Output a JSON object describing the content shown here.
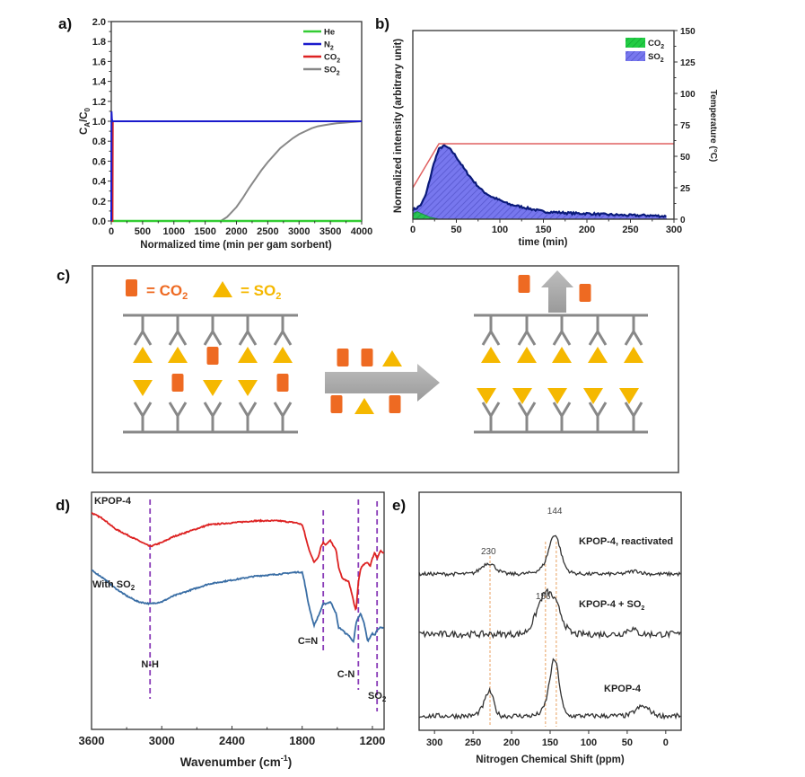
{
  "figure": {
    "panels": [
      "a)",
      "b)",
      "c)",
      "d)",
      "e)"
    ]
  },
  "chart_data": [
    {
      "id": "a",
      "type": "line",
      "title": "",
      "xlabel": "Normalized time (min per gam sorbent)",
      "ylabel": "C_A/C_0",
      "xlim": [
        0,
        4000
      ],
      "ylim": [
        0,
        2.0
      ],
      "xticks": [
        "0",
        "500",
        "1000",
        "1500",
        "2000",
        "2500",
        "3000",
        "3500",
        "4000"
      ],
      "yticks": [
        "0.0",
        "0.2",
        "0.4",
        "0.6",
        "0.8",
        "1.0",
        "1.2",
        "1.4",
        "1.6",
        "1.8",
        "2.0"
      ],
      "legend_position": "top-right",
      "series": [
        {
          "name": "He",
          "label_main": "He",
          "label_sub": "",
          "color": "#33cc33",
          "x": [
            0,
            10,
            4000
          ],
          "y": [
            0,
            0,
            0
          ]
        },
        {
          "name": "N2",
          "label_main": "N",
          "label_sub": "2",
          "color": "#1a1acc",
          "x": [
            0,
            5,
            10,
            20,
            4000
          ],
          "y": [
            0,
            1.1,
            1.02,
            1.0,
            1.0
          ]
        },
        {
          "name": "CO2",
          "label_main": "CO",
          "label_sub": "2",
          "color": "#dd2222",
          "x": [
            0,
            20,
            25,
            30,
            4000
          ],
          "y": [
            0,
            0,
            1.0,
            1.0,
            1.0
          ]
        },
        {
          "name": "SO2",
          "label_main": "SO",
          "label_sub": "2",
          "color": "#888888",
          "x": [
            0,
            1750,
            1850,
            2000,
            2100,
            2200,
            2300,
            2400,
            2500,
            2600,
            2700,
            2800,
            2900,
            3000,
            3100,
            3200,
            3300,
            3400,
            3500,
            3600,
            3700,
            3800,
            3900,
            4000
          ],
          "y": [
            0,
            0,
            0.04,
            0.14,
            0.23,
            0.33,
            0.42,
            0.51,
            0.59,
            0.66,
            0.73,
            0.78,
            0.83,
            0.87,
            0.9,
            0.93,
            0.95,
            0.96,
            0.97,
            0.98,
            0.985,
            0.99,
            0.995,
            1.0
          ]
        }
      ]
    },
    {
      "id": "b",
      "type": "area",
      "title": "",
      "xlabel": "time (min)",
      "ylabel": "Normalized intensity (arbitrary unit)",
      "y2label": "Temperature (°C)",
      "xlim": [
        0,
        300
      ],
      "ylim": [
        0,
        1
      ],
      "y2lim": [
        0,
        150
      ],
      "xticks": [
        "0",
        "50",
        "100",
        "150",
        "200",
        "250",
        "300"
      ],
      "y2ticks": [
        "0",
        "25",
        "50",
        "75",
        "100",
        "125",
        "150"
      ],
      "legend_position": "top-right",
      "series": [
        {
          "name": "CO2",
          "label_main": "CO",
          "label_sub": "2",
          "fill": "#22cc44",
          "color": "#118833",
          "x": [
            0,
            5,
            10,
            15,
            20,
            25,
            30
          ],
          "y": [
            0.03,
            0.04,
            0.03,
            0.02,
            0.01,
            0.005,
            0.0
          ]
        },
        {
          "name": "SO2",
          "label_main": "SO",
          "label_sub": "2",
          "fill": "#7777ee",
          "color": "#0a1a7a",
          "x": [
            0,
            5,
            10,
            15,
            20,
            25,
            30,
            35,
            40,
            45,
            50,
            60,
            70,
            80,
            90,
            100,
            110,
            120,
            130,
            140,
            150,
            170,
            190,
            200,
            220,
            250,
            270,
            292
          ],
          "y": [
            0.05,
            0.06,
            0.08,
            0.13,
            0.22,
            0.31,
            0.37,
            0.39,
            0.38,
            0.36,
            0.33,
            0.26,
            0.2,
            0.15,
            0.12,
            0.1,
            0.08,
            0.07,
            0.06,
            0.05,
            0.04,
            0.035,
            0.03,
            0.03,
            0.025,
            0.02,
            0.02,
            0.015
          ]
        },
        {
          "name": "Temperature",
          "label_main": "",
          "label_sub": "",
          "color": "#e06060",
          "axis": "y2",
          "x": [
            0,
            30,
            300
          ],
          "y": [
            25,
            60,
            60
          ]
        }
      ]
    },
    {
      "id": "d",
      "type": "line",
      "title": "",
      "xlabel_main": "Wavenumber (cm",
      "xlabel_sup": "-1",
      "xlabel_end": ")",
      "xlim": [
        3600,
        1100
      ],
      "xticks": [
        "3600",
        "3000",
        "2400",
        "1800",
        "1200"
      ],
      "annotations": [
        {
          "text": "N-H",
          "x": 3100
        },
        {
          "text": "C=N",
          "x": 1620
        },
        {
          "text": "C-N",
          "x": 1320
        },
        {
          "text": "SO",
          "sub": "2",
          "x": 1160
        }
      ],
      "series": [
        {
          "name": "KPOP-4",
          "color": "#dd2222",
          "x": [
            3600,
            3500,
            3400,
            3300,
            3200,
            3100,
            3000,
            2900,
            2800,
            2700,
            2600,
            2400,
            2200,
            2000,
            1850,
            1800,
            1780,
            1750,
            1700,
            1660,
            1640,
            1620,
            1600,
            1560,
            1540,
            1510,
            1490,
            1460,
            1430,
            1400,
            1380,
            1360,
            1340,
            1320,
            1300,
            1270,
            1240,
            1220,
            1200,
            1180,
            1160,
            1130,
            1100
          ],
          "y": [
            0.95,
            0.92,
            0.87,
            0.84,
            0.81,
            0.78,
            0.8,
            0.83,
            0.85,
            0.87,
            0.89,
            0.9,
            0.91,
            0.91,
            0.9,
            0.89,
            0.85,
            0.78,
            0.7,
            0.73,
            0.78,
            0.8,
            0.79,
            0.81,
            0.79,
            0.76,
            0.68,
            0.62,
            0.61,
            0.6,
            0.55,
            0.5,
            0.45,
            0.6,
            0.67,
            0.69,
            0.7,
            0.68,
            0.72,
            0.75,
            0.72,
            0.76,
            0.74
          ]
        },
        {
          "name": "With SO2",
          "color": "#3a6ea5",
          "x": [
            3600,
            3500,
            3400,
            3300,
            3200,
            3100,
            3000,
            2900,
            2800,
            2700,
            2600,
            2400,
            2200,
            2000,
            1850,
            1800,
            1780,
            1750,
            1700,
            1660,
            1640,
            1620,
            1600,
            1560,
            1540,
            1510,
            1490,
            1460,
            1430,
            1400,
            1380,
            1360,
            1340,
            1320,
            1300,
            1270,
            1240,
            1220,
            1200,
            1180,
            1160,
            1130,
            1100
          ],
          "y": [
            0.66,
            0.62,
            0.57,
            0.53,
            0.5,
            0.49,
            0.5,
            0.53,
            0.55,
            0.57,
            0.59,
            0.61,
            0.63,
            0.64,
            0.65,
            0.65,
            0.6,
            0.5,
            0.38,
            0.43,
            0.46,
            0.49,
            0.49,
            0.5,
            0.48,
            0.44,
            0.37,
            0.36,
            0.34,
            0.33,
            0.31,
            0.3,
            0.39,
            0.42,
            0.44,
            0.39,
            0.3,
            0.32,
            0.34,
            0.33,
            0.36,
            0.37,
            0.37
          ]
        }
      ],
      "labels": [
        {
          "text": "KPOP-4",
          "sub": ""
        },
        {
          "text": "With SO",
          "sub": "2"
        }
      ]
    },
    {
      "id": "e",
      "type": "line",
      "title": "",
      "xlabel": "Nitrogen Chemical Shift (ppm)",
      "xlim": [
        320,
        -20
      ],
      "xticks": [
        "300",
        "250",
        "200",
        "150",
        "100",
        "50",
        "0"
      ],
      "reference_lines_ppm": [
        228,
        156,
        142
      ],
      "peak_labels": [
        {
          "text": "144",
          "x": 144,
          "series": 0
        },
        {
          "text": "230",
          "x": 230,
          "series": 0
        },
        {
          "text": "156",
          "x": 156,
          "series": 1
        }
      ],
      "series": [
        {
          "name": "KPOP-4, reactivated",
          "label_main": "KPOP-4,  reactivated",
          "label_sub": "",
          "color": "#333333",
          "peaks": [
            {
              "center": 230,
              "height": 0.55,
              "width": 9
            },
            {
              "center": 144,
              "height": 1.6,
              "width": 7
            },
            {
              "center": 148,
              "height": 0.4,
              "width": 14
            },
            {
              "center": 40,
              "height": 0.15,
              "width": 8
            }
          ]
        },
        {
          "name": "KPOP-4 + SO2",
          "label_main": "KPOP-4 + SO",
          "label_sub": "2",
          "color": "#333333",
          "peaks": [
            {
              "center": 156,
              "height": 1.1,
              "width": 11
            },
            {
              "center": 140,
              "height": 0.4,
              "width": 8
            },
            {
              "center": 45,
              "height": 0.15,
              "width": 6
            }
          ]
        },
        {
          "name": "KPOP-4",
          "label_main": "KPOP-4",
          "label_sub": "",
          "color": "#333333",
          "peaks": [
            {
              "center": 228,
              "height": 0.8,
              "width": 5
            },
            {
              "center": 236,
              "height": 0.25,
              "width": 6
            },
            {
              "center": 144,
              "height": 1.9,
              "width": 6
            },
            {
              "center": 152,
              "height": 0.3,
              "width": 8
            },
            {
              "center": 30,
              "height": 0.35,
              "width": 9
            }
          ]
        }
      ]
    }
  ],
  "schematic": {
    "legend": {
      "co2_eq": "= CO",
      "co2_sub": "2",
      "so2_eq": "= SO",
      "so2_sub": "2"
    },
    "colors": {
      "co2": "#ee6a22",
      "so2": "#f5b800",
      "so2_text": "#f5b800",
      "co2_text": "#ee6a22",
      "frame": "#888888",
      "arrow": "#a8a8a8"
    },
    "before_top_row": [
      "SO2",
      "SO2",
      "CO2",
      "SO2",
      "SO2"
    ],
    "before_bottom_row": [
      "SO2",
      "CO2",
      "SO2",
      "SO2",
      "CO2"
    ],
    "middle_top": [
      "CO2",
      "CO2",
      "SO2"
    ],
    "middle_bottom": [
      "CO2",
      "SO2",
      "CO2"
    ],
    "after_top_row": [
      "SO2",
      "SO2",
      "SO2",
      "SO2",
      "SO2"
    ],
    "after_bottom_row": [
      "SO2",
      "SO2",
      "SO2",
      "SO2",
      "SO2"
    ],
    "released": [
      "CO2",
      "CO2"
    ]
  }
}
